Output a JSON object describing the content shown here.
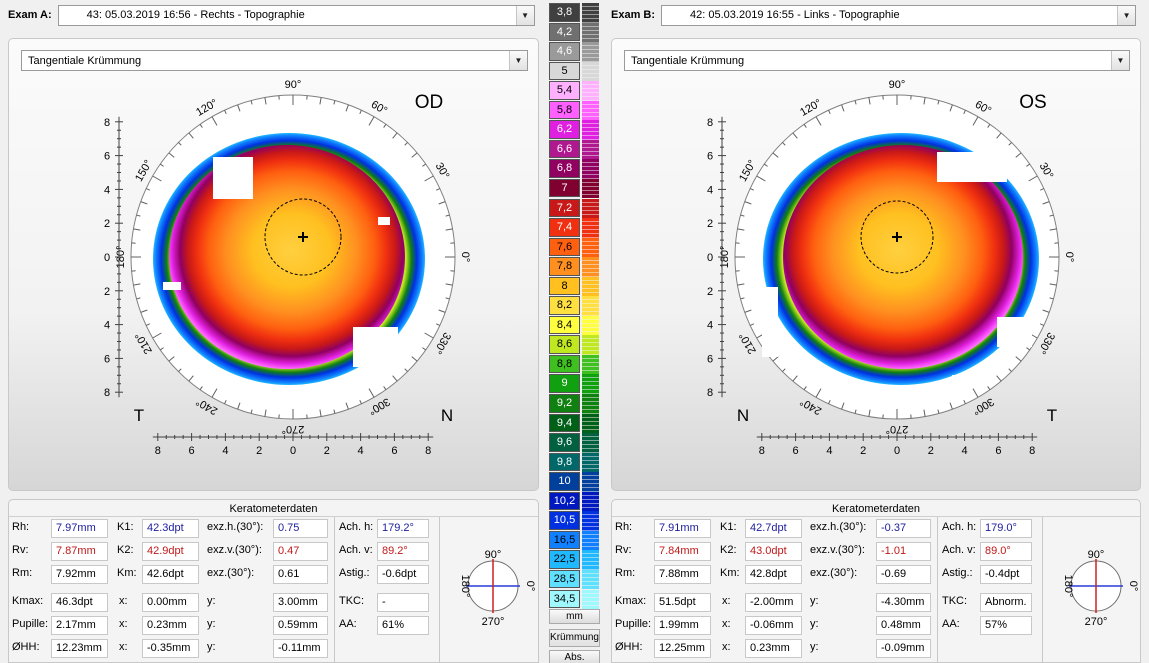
{
  "colors": {
    "accent_blue": "#1c1c9c",
    "accent_red": "#c01818"
  },
  "exam_a": {
    "label": "Exam A:",
    "value": "43: 05.03.2019 16:56 - Rechts - Topographie"
  },
  "exam_b": {
    "label": "Exam B:",
    "value": "42: 05.03.2019 16:55 - Links - Topographie"
  },
  "maps": {
    "left": {
      "dropdown": "Tangentiale Krümmung",
      "eye": "OD",
      "corner_left": "T",
      "corner_right": "N"
    },
    "right": {
      "dropdown": "Tangentiale Krümmung",
      "eye": "OS",
      "corner_left": "N",
      "corner_right": "T"
    },
    "angles": [
      "90°",
      "60°",
      "30°",
      "0°",
      "330°",
      "300°",
      "270°",
      "240°",
      "210°",
      "180°",
      "150°",
      "120°"
    ],
    "y_ticks": [
      "8",
      "6",
      "4",
      "2",
      "0",
      "2",
      "4",
      "6",
      "8"
    ],
    "x_ticks": [
      "8",
      "6",
      "4",
      "2",
      "0",
      "2",
      "4",
      "6",
      "8"
    ]
  },
  "scale": {
    "labels": [
      "3,8",
      "4,2",
      "4,6",
      "5",
      "5,4",
      "5,8",
      "6,2",
      "6,6",
      "6,8",
      "7",
      "7,2",
      "7,4",
      "7,6",
      "7,8",
      "8",
      "8,2",
      "8,4",
      "8,6",
      "8,8",
      "9",
      "9,2",
      "9,4",
      "9,6",
      "9,8",
      "10",
      "10,2",
      "10,5",
      "16,5",
      "22,5",
      "28,5",
      "34,5"
    ],
    "colors": [
      "#404040",
      "#707070",
      "#9a9a9a",
      "#d8d8d8",
      "#ffb0ff",
      "#ff60ff",
      "#e020e0",
      "#b01890",
      "#900060",
      "#800030",
      "#c81818",
      "#f03010",
      "#ff6010",
      "#ff9020",
      "#ffc020",
      "#ffe040",
      "#ffff40",
      "#c0e820",
      "#40c020",
      "#10a010",
      "#108010",
      "#006018",
      "#006040",
      "#006868",
      "#00409c",
      "#0018c0",
      "#0030e0",
      "#1080ff",
      "#20b8ff",
      "#60e0ff",
      "#a0f8ff"
    ],
    "buttons": [
      "mm",
      "Krümmung",
      "Abs."
    ]
  },
  "kera": {
    "left": {
      "title": "Keratometerdaten",
      "rh": {
        "label": "Rh:",
        "value": "7.97mm"
      },
      "rv": {
        "label": "Rv:",
        "value": "7.87mm"
      },
      "rm": {
        "label": "Rm:",
        "value": "7.92mm"
      },
      "k1": {
        "label": "K1:",
        "value": "42.3dpt"
      },
      "k2": {
        "label": "K2:",
        "value": "42.9dpt"
      },
      "km": {
        "label": "Km:",
        "value": "42.6dpt"
      },
      "exzh": {
        "label": "exz.h.(30°):",
        "value": "0.75"
      },
      "exzv": {
        "label": "exz.v.(30°):",
        "value": "0.47"
      },
      "exz": {
        "label": "exz.(30°):",
        "value": "0.61"
      },
      "achh": {
        "label": "Ach. h:",
        "value": "179.2°"
      },
      "achv": {
        "label": "Ach. v:",
        "value": "89.2°"
      },
      "astig": {
        "label": "Astig.:",
        "value": "-0.6dpt"
      },
      "kmax": {
        "label": "Kmax:",
        "value": "46.3dpt",
        "x": "0.00mm",
        "y": "3.00mm"
      },
      "pupille": {
        "label": "Pupille:",
        "value": "2.17mm",
        "x": "0.23mm",
        "y": "0.59mm"
      },
      "hh": {
        "label": "ØHH:",
        "value": "12.23mm",
        "x": "-0.35mm",
        "y": "-0.11mm"
      },
      "x_label": "x:",
      "y_label": "y:",
      "tkc": {
        "label": "TKC:",
        "value": "-"
      },
      "aa": {
        "label": "AA:",
        "value": "61%"
      },
      "axis": {
        "top": "90°",
        "bottom": "270°",
        "left": "180°",
        "right": "0°"
      }
    },
    "right": {
      "title": "Keratometerdaten",
      "rh": {
        "label": "Rh:",
        "value": "7.91mm"
      },
      "rv": {
        "label": "Rv:",
        "value": "7.84mm"
      },
      "rm": {
        "label": "Rm:",
        "value": "7.88mm"
      },
      "k1": {
        "label": "K1:",
        "value": "42.7dpt"
      },
      "k2": {
        "label": "K2:",
        "value": "43.0dpt"
      },
      "km": {
        "label": "Km:",
        "value": "42.8dpt"
      },
      "exzh": {
        "label": "exz.h.(30°):",
        "value": "-0.37"
      },
      "exzv": {
        "label": "exz.v.(30°):",
        "value": "-1.01"
      },
      "exz": {
        "label": "exz.(30°):",
        "value": "-0.69"
      },
      "achh": {
        "label": "Ach. h:",
        "value": "179.0°"
      },
      "achv": {
        "label": "Ach. v:",
        "value": "89.0°"
      },
      "astig": {
        "label": "Astig.:",
        "value": "-0.4dpt"
      },
      "kmax": {
        "label": "Kmax:",
        "value": "51.5dpt",
        "x": "-2.00mm",
        "y": "-4.30mm"
      },
      "pupille": {
        "label": "Pupille:",
        "value": "1.99mm",
        "x": "-0.06mm",
        "y": "0.48mm"
      },
      "hh": {
        "label": "ØHH:",
        "value": "12.25mm",
        "x": "0.23mm",
        "y": "-0.09mm"
      },
      "x_label": "x:",
      "y_label": "y:",
      "tkc": {
        "label": "TKC:",
        "value": "Abnorm."
      },
      "aa": {
        "label": "AA:",
        "value": "57%"
      },
      "axis": {
        "top": "90°",
        "bottom": "270°",
        "left": "180°",
        "right": "0°"
      }
    }
  }
}
